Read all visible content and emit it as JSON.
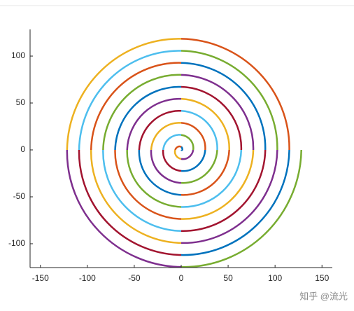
{
  "chart_data": {
    "type": "line",
    "xlim": [
      -161,
      161
    ],
    "ylim": [
      -125.4,
      128.4
    ],
    "xticks": [
      -150,
      -100,
      -50,
      0,
      50,
      100,
      150
    ],
    "yticks": [
      -100,
      -50,
      0,
      50,
      100
    ],
    "series": [
      {
        "color": "#0072BD",
        "x": [
          0,
          1.1,
          0,
          null,
          0,
          17,
          25.6,
          null,
          -44.8,
          -32.8,
          0,
          null,
          0,
          -48.6,
          -70.4,
          null,
          89.6,
          64.5,
          0,
          null,
          0,
          80.3,
          115.2
        ],
        "y": [
          0,
          1.1,
          3.2,
          null,
          -22.4,
          -17,
          0,
          null,
          0,
          -32.8,
          -48,
          null,
          67.2,
          48.6,
          0,
          null,
          0,
          64.5,
          92.8,
          null,
          -112,
          -80.3,
          0
        ]
      },
      {
        "color": "#D95319",
        "x": [
          0,
          -3.4,
          -6.4,
          null,
          25.6,
          19.2,
          0,
          null,
          0,
          35.1,
          51.2,
          null,
          -70.4,
          -50.9,
          0,
          null,
          0,
          -66.8,
          -96,
          null,
          115.2,
          82.6,
          0
        ],
        "y": [
          3.2,
          3.4,
          0,
          null,
          0,
          19.2,
          28.8,
          null,
          -48,
          -35.1,
          0,
          null,
          0,
          -50.9,
          -73.6,
          null,
          92.8,
          66.8,
          0,
          null,
          0,
          82.6,
          118.4
        ]
      },
      {
        "color": "#EDB120",
        "x": [
          -6.4,
          -5.7,
          0,
          null,
          0,
          -21.5,
          -32,
          null,
          51.2,
          37.3,
          0,
          null,
          0,
          53.2,
          76.8,
          null,
          -96,
          -69,
          0,
          null,
          0,
          -84.9,
          -121.6
        ],
        "y": [
          0,
          -5.7,
          -9.6,
          null,
          28.8,
          21.5,
          0,
          null,
          0,
          37.3,
          54.4,
          null,
          -73.6,
          -53.2,
          0,
          null,
          0,
          -69,
          -99.2,
          null,
          118.4,
          84.9,
          0
        ]
      },
      {
        "color": "#7E2F8E",
        "x": [
          0,
          7.9,
          12.8,
          null,
          -32,
          -23.8,
          0,
          null,
          0,
          -39.6,
          -57.6,
          null,
          76.8,
          55.4,
          0,
          null,
          0,
          71.3,
          102.4,
          null,
          -121.6,
          -87.1,
          0
        ],
        "y": [
          -9.6,
          -7.9,
          0,
          null,
          0,
          -23.8,
          -35.2,
          null,
          54.4,
          39.6,
          0,
          null,
          0,
          55.4,
          80,
          null,
          -99.2,
          -71.3,
          0,
          null,
          0,
          -87.1,
          -124.8
        ]
      },
      {
        "color": "#77AC30",
        "x": [
          12.8,
          10.2,
          0,
          null,
          0,
          26,
          38.4,
          null,
          -57.6,
          -41.9,
          0,
          null,
          0,
          -57.7,
          -83.2,
          null,
          102.4,
          73.5,
          0,
          null,
          0,
          89.4,
          128
        ],
        "y": [
          0,
          10.2,
          16,
          null,
          -35.2,
          -26,
          0,
          null,
          0,
          -41.9,
          -60.8,
          null,
          80,
          57.7,
          0,
          null,
          0,
          73.5,
          105.6,
          null,
          -124.8,
          -89.4,
          0
        ]
      },
      {
        "color": "#4DBEEE",
        "x": [
          0,
          -12.4,
          -19.2,
          null,
          38.4,
          28.3,
          0,
          null,
          0,
          44.1,
          64,
          null,
          -83.2,
          -60,
          0,
          null,
          0,
          -75.8,
          -108.8
        ],
        "y": [
          16,
          12.4,
          0,
          null,
          0,
          28.3,
          41.6,
          null,
          -60.8,
          -44.1,
          0,
          null,
          0,
          -60,
          -86.4,
          null,
          105.6,
          75.8,
          0
        ]
      },
      {
        "color": "#A2142F",
        "x": [
          -19.2,
          -14.7,
          0,
          null,
          0,
          -30.5,
          -44.8,
          null,
          64,
          46.4,
          0,
          null,
          0,
          62.2,
          89.6,
          null,
          -108.8,
          -78.1,
          0
        ],
        "y": [
          0,
          -14.7,
          -22.4,
          null,
          41.6,
          30.5,
          0,
          null,
          0,
          46.4,
          67.2,
          null,
          -86.4,
          -62.2,
          0,
          null,
          0,
          -78.1,
          -112
        ]
      }
    ],
    "watermark": "知乎 @流光"
  }
}
